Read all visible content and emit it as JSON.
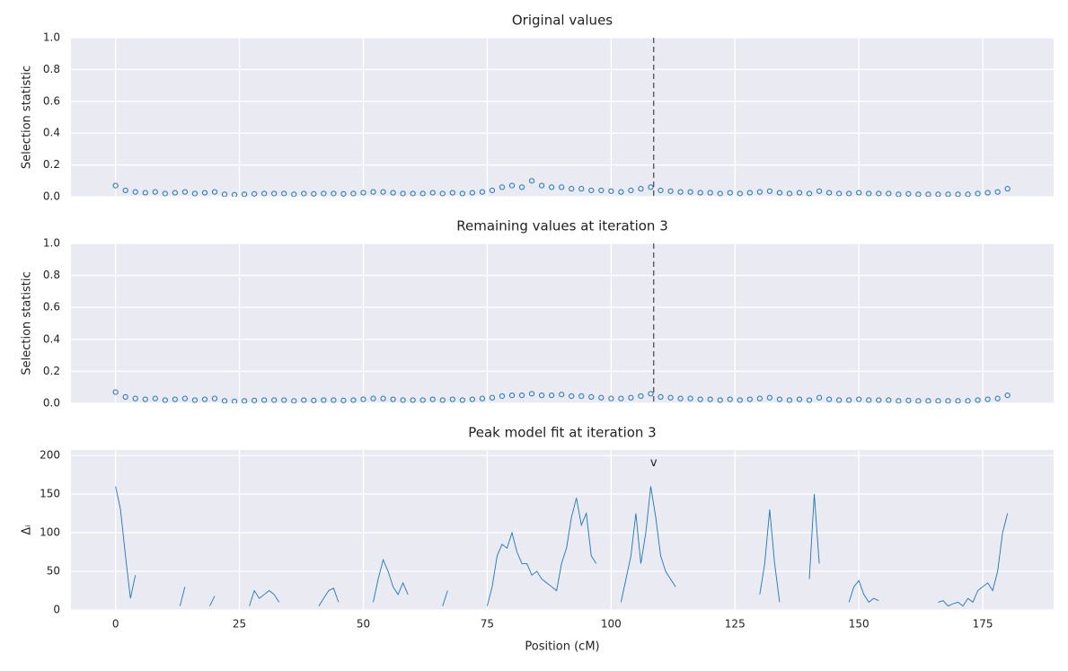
{
  "chart_data": [
    {
      "type": "scatter",
      "title": "Original values",
      "y_label": "Selection statistic",
      "color": "#1f77b4",
      "grid": true,
      "xlim": [
        -9,
        189.3
      ],
      "xticks": [
        0,
        25,
        50,
        75,
        100,
        125,
        150,
        175
      ],
      "ylim": [
        0,
        1
      ],
      "yticks": [
        {
          "value": 0,
          "label": "0.0"
        },
        {
          "value": 0.2,
          "label": "0.2"
        },
        {
          "value": 0.4,
          "label": "0.4"
        },
        {
          "value": 0.6,
          "label": "0.6"
        },
        {
          "value": 0.8,
          "label": "0.8"
        },
        {
          "value": 1,
          "label": "1.0"
        }
      ],
      "vline": 108.6,
      "x": [
        0,
        2,
        4,
        6,
        8,
        10,
        12,
        14,
        16,
        18,
        20,
        22,
        24,
        26,
        28,
        30,
        32,
        34,
        36,
        38,
        40,
        42,
        44,
        46,
        48,
        50,
        52,
        54,
        56,
        58,
        60,
        62,
        64,
        66,
        68,
        70,
        72,
        74,
        76,
        78,
        80,
        82,
        84,
        86,
        88,
        90,
        92,
        94,
        96,
        98,
        100,
        102,
        104,
        106,
        108,
        110,
        112,
        114,
        116,
        118,
        120,
        122,
        124,
        126,
        128,
        130,
        132,
        134,
        136,
        138,
        140,
        142,
        144,
        146,
        148,
        150,
        152,
        154,
        156,
        158,
        160,
        162,
        164,
        166,
        168,
        170,
        172,
        174,
        176,
        178,
        180
      ],
      "values": [
        0.07,
        0.04,
        0.03,
        0.025,
        0.03,
        0.02,
        0.025,
        0.03,
        0.02,
        0.025,
        0.03,
        0.015,
        0.012,
        0.015,
        0.018,
        0.02,
        0.02,
        0.02,
        0.015,
        0.02,
        0.018,
        0.02,
        0.02,
        0.018,
        0.02,
        0.025,
        0.03,
        0.03,
        0.025,
        0.02,
        0.02,
        0.02,
        0.025,
        0.02,
        0.025,
        0.02,
        0.025,
        0.03,
        0.04,
        0.06,
        0.07,
        0.06,
        0.1,
        0.07,
        0.06,
        0.06,
        0.05,
        0.05,
        0.04,
        0.04,
        0.035,
        0.03,
        0.04,
        0.05,
        0.06,
        0.04,
        0.035,
        0.03,
        0.03,
        0.025,
        0.025,
        0.02,
        0.025,
        0.02,
        0.025,
        0.03,
        0.035,
        0.025,
        0.02,
        0.025,
        0.02,
        0.035,
        0.025,
        0.02,
        0.02,
        0.025,
        0.02,
        0.02,
        0.02,
        0.015,
        0.018,
        0.015,
        0.015,
        0.015,
        0.015,
        0.015,
        0.015,
        0.02,
        0.025,
        0.03,
        0.05
      ]
    },
    {
      "type": "scatter",
      "title": "Remaining values at iteration 3",
      "y_label": "Selection statistic",
      "color": "#1f77b4",
      "grid": true,
      "xlim": [
        -9,
        189.3
      ],
      "xticks": [
        0,
        25,
        50,
        75,
        100,
        125,
        150,
        175
      ],
      "ylim": [
        0,
        1
      ],
      "yticks": [
        {
          "value": 0,
          "label": "0.0"
        },
        {
          "value": 0.2,
          "label": "0.2"
        },
        {
          "value": 0.4,
          "label": "0.4"
        },
        {
          "value": 0.6,
          "label": "0.6"
        },
        {
          "value": 0.8,
          "label": "0.8"
        },
        {
          "value": 1,
          "label": "1.0"
        }
      ],
      "vline": 108.6,
      "x": [
        0,
        2,
        4,
        6,
        8,
        10,
        12,
        14,
        16,
        18,
        20,
        22,
        24,
        26,
        28,
        30,
        32,
        34,
        36,
        38,
        40,
        42,
        44,
        46,
        48,
        50,
        52,
        54,
        56,
        58,
        60,
        62,
        64,
        66,
        68,
        70,
        72,
        74,
        76,
        78,
        80,
        82,
        84,
        86,
        88,
        90,
        92,
        94,
        96,
        98,
        100,
        102,
        104,
        106,
        108,
        110,
        112,
        114,
        116,
        118,
        120,
        122,
        124,
        126,
        128,
        130,
        132,
        134,
        136,
        138,
        140,
        142,
        144,
        146,
        148,
        150,
        152,
        154,
        156,
        158,
        160,
        162,
        164,
        166,
        168,
        170,
        172,
        174,
        176,
        178,
        180
      ],
      "values": [
        0.07,
        0.04,
        0.03,
        0.025,
        0.03,
        0.02,
        0.025,
        0.03,
        0.02,
        0.025,
        0.03,
        0.015,
        0.012,
        0.015,
        0.018,
        0.02,
        0.02,
        0.02,
        0.015,
        0.02,
        0.018,
        0.02,
        0.02,
        0.018,
        0.02,
        0.025,
        0.03,
        0.03,
        0.025,
        0.02,
        0.02,
        0.02,
        0.025,
        0.02,
        0.025,
        0.02,
        0.025,
        0.03,
        0.035,
        0.045,
        0.05,
        0.05,
        0.06,
        0.05,
        0.05,
        0.055,
        0.045,
        0.045,
        0.04,
        0.035,
        0.03,
        0.03,
        0.035,
        0.045,
        0.06,
        0.04,
        0.035,
        0.03,
        0.03,
        0.025,
        0.025,
        0.02,
        0.025,
        0.02,
        0.025,
        0.03,
        0.035,
        0.025,
        0.02,
        0.025,
        0.02,
        0.035,
        0.025,
        0.02,
        0.02,
        0.025,
        0.02,
        0.02,
        0.02,
        0.015,
        0.018,
        0.015,
        0.015,
        0.015,
        0.015,
        0.015,
        0.015,
        0.02,
        0.025,
        0.03,
        0.05
      ]
    },
    {
      "type": "line",
      "title": "Peak model fit at iteration 3",
      "y_label": "Δᵢ",
      "x_label": "Position (cM)",
      "color": "#1f77b4",
      "grid": true,
      "xlim": [
        -9,
        189.3
      ],
      "xticks": [
        0,
        25,
        50,
        75,
        100,
        125,
        150,
        175
      ],
      "ylim": [
        0,
        207
      ],
      "yticks": [
        0,
        50,
        100,
        150,
        200
      ],
      "annotation": {
        "x": 108.6,
        "y": 190,
        "text": "v"
      },
      "x": [
        0,
        1,
        2,
        3,
        4,
        5,
        6,
        7,
        8,
        9,
        10,
        11,
        12,
        13,
        14,
        15,
        16,
        17,
        18,
        19,
        20,
        21,
        22,
        23,
        24,
        25,
        26,
        27,
        28,
        29,
        30,
        31,
        32,
        33,
        34,
        35,
        36,
        37,
        38,
        39,
        40,
        41,
        42,
        43,
        44,
        45,
        46,
        47,
        48,
        49,
        50,
        51,
        52,
        53,
        54,
        55,
        56,
        57,
        58,
        59,
        60,
        61,
        62,
        63,
        64,
        65,
        66,
        67,
        68,
        69,
        70,
        71,
        72,
        73,
        74,
        75,
        76,
        77,
        78,
        79,
        80,
        81,
        82,
        83,
        84,
        85,
        86,
        87,
        88,
        89,
        90,
        91,
        92,
        93,
        94,
        95,
        96,
        97,
        98,
        99,
        100,
        101,
        102,
        103,
        104,
        105,
        106,
        107,
        108,
        109,
        110,
        111,
        112,
        113,
        114,
        115,
        116,
        117,
        118,
        119,
        120,
        121,
        122,
        123,
        124,
        125,
        126,
        127,
        128,
        129,
        130,
        131,
        132,
        133,
        134,
        135,
        136,
        137,
        138,
        139,
        140,
        141,
        142,
        143,
        144,
        145,
        146,
        147,
        148,
        149,
        150,
        151,
        152,
        153,
        154,
        155,
        156,
        157,
        158,
        159,
        160,
        161,
        162,
        163,
        164,
        165,
        166,
        167,
        168,
        169,
        170,
        171,
        172,
        173,
        174,
        175,
        176,
        177,
        178,
        179,
        180
      ],
      "values": [
        160,
        130,
        70,
        15,
        45,
        null,
        null,
        null,
        null,
        null,
        null,
        null,
        null,
        5,
        30,
        null,
        null,
        null,
        null,
        5,
        18,
        null,
        null,
        null,
        null,
        null,
        null,
        5,
        25,
        15,
        20,
        25,
        20,
        10,
        null,
        20,
        null,
        null,
        null,
        null,
        null,
        5,
        15,
        25,
        28,
        10,
        null,
        null,
        null,
        null,
        null,
        null,
        10,
        40,
        65,
        50,
        30,
        20,
        35,
        20,
        null,
        null,
        null,
        null,
        null,
        null,
        5,
        25,
        null,
        null,
        null,
        null,
        null,
        null,
        null,
        5,
        30,
        70,
        85,
        80,
        100,
        75,
        60,
        60,
        45,
        50,
        40,
        35,
        30,
        25,
        60,
        80,
        120,
        145,
        110,
        125,
        70,
        60,
        null,
        null,
        null,
        null,
        10,
        40,
        70,
        125,
        60,
        100,
        160,
        120,
        70,
        50,
        40,
        30,
        null,
        null,
        null,
        null,
        null,
        10,
        null,
        null,
        null,
        null,
        null,
        null,
        null,
        null,
        null,
        null,
        20,
        60,
        130,
        60,
        10,
        null,
        null,
        null,
        null,
        null,
        40,
        150,
        60,
        null,
        null,
        null,
        null,
        null,
        10,
        30,
        38,
        20,
        10,
        15,
        12,
        null,
        null,
        null,
        null,
        null,
        null,
        null,
        null,
        null,
        null,
        null,
        10,
        12,
        5,
        8,
        10,
        5,
        15,
        10,
        25,
        30,
        35,
        25,
        50,
        100,
        125
      ]
    }
  ]
}
